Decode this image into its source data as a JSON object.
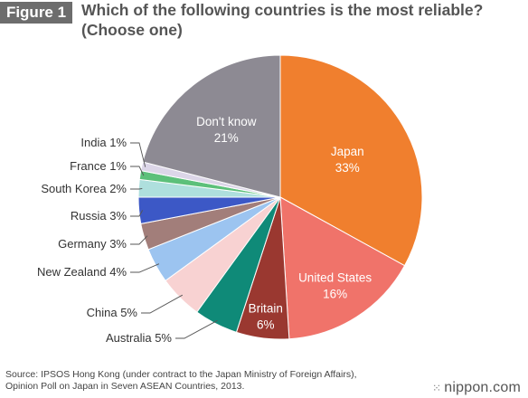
{
  "figure_label": "Figure 1",
  "title_line1": "Which of the following countries is the most reliable?",
  "title_line2": "(Choose one)",
  "source_line1": "Source: IPSOS Hong Kong (under contract to the Japan Ministry of Foreign Affairs),",
  "source_line2": "Opinion Poll on Japan in Seven ASEAN Countries, 2013.",
  "brand": "nippon.com",
  "brand_icon": "nippon-logo-icon",
  "chart_data": {
    "type": "pie",
    "unit": "%",
    "slices": [
      {
        "label": "Japan",
        "value": 33,
        "color": "#f07f2e"
      },
      {
        "label": "United States",
        "value": 16,
        "color": "#f0736a"
      },
      {
        "label": "Britain",
        "value": 6,
        "color": "#9a3830"
      },
      {
        "label": "Australia",
        "value": 5,
        "color": "#0f8a78"
      },
      {
        "label": "China",
        "value": 5,
        "color": "#f8d2d2"
      },
      {
        "label": "New Zealand",
        "value": 4,
        "color": "#9cc4f0"
      },
      {
        "label": "Germany",
        "value": 3,
        "color": "#a27e7a"
      },
      {
        "label": "Russia",
        "value": 3,
        "color": "#3c58c6"
      },
      {
        "label": "South Korea",
        "value": 2,
        "color": "#aedfdd"
      },
      {
        "label": "France",
        "value": 1,
        "color": "#5cc07a"
      },
      {
        "label": "India",
        "value": 1,
        "color": "#dcd6e8"
      },
      {
        "label": "Don't know",
        "value": 21,
        "color": "#8d8a93"
      }
    ]
  }
}
